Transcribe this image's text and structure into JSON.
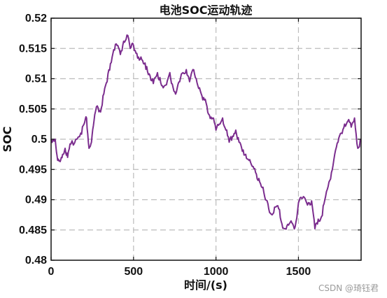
{
  "chart_data": {
    "type": "line",
    "title": "电池SOC运动轨迹",
    "xlabel": "时间/(s)",
    "ylabel": "SOC",
    "xlim": [
      0,
      1880
    ],
    "ylim": [
      0.48,
      0.52
    ],
    "xticks": [
      0,
      500,
      1000,
      1500
    ],
    "yticks": [
      0.48,
      0.485,
      0.49,
      0.495,
      0.5,
      0.505,
      0.51,
      0.515,
      0.52
    ],
    "ytick_labels": [
      "0.48",
      "0.485",
      "0.49",
      "0.495",
      "0.5",
      "0.505",
      "0.51",
      "0.515",
      "0.52"
    ],
    "grid": true,
    "line_color": "#7b2d8e",
    "series": [
      {
        "x": [
          0,
          25,
          40,
          55,
          70,
          85,
          100,
          120,
          150,
          180,
          200,
          215,
          230,
          245,
          260,
          280,
          300,
          320,
          340,
          360,
          380,
          400,
          420,
          440,
          460,
          480,
          500,
          520,
          540,
          560,
          580,
          600,
          620,
          640,
          660,
          680,
          700,
          720,
          740,
          760,
          780,
          800,
          820,
          840,
          860,
          880,
          900,
          920,
          940,
          960,
          980,
          1000,
          1020,
          1040,
          1060,
          1080,
          1100,
          1120,
          1140,
          1160,
          1180,
          1200,
          1220,
          1240,
          1260,
          1280,
          1300,
          1320,
          1340,
          1360,
          1380,
          1400,
          1420,
          1440,
          1460,
          1480,
          1500,
          1520,
          1540,
          1560,
          1580,
          1600,
          1620,
          1640,
          1660,
          1680,
          1700,
          1720,
          1740,
          1760,
          1780,
          1800,
          1820,
          1840,
          1860,
          1880
        ],
        "y": [
          0.5,
          0.5,
          0.4965,
          0.4963,
          0.4975,
          0.4985,
          0.497,
          0.4992,
          0.5,
          0.501,
          0.5025,
          0.5035,
          0.4985,
          0.4995,
          0.503,
          0.5055,
          0.5045,
          0.5075,
          0.5095,
          0.5125,
          0.5148,
          0.5155,
          0.514,
          0.5162,
          0.5172,
          0.515,
          0.5155,
          0.5142,
          0.5132,
          0.5125,
          0.512,
          0.5105,
          0.5092,
          0.5105,
          0.5102,
          0.5085,
          0.509,
          0.511,
          0.5085,
          0.5078,
          0.5095,
          0.511,
          0.5115,
          0.5095,
          0.5115,
          0.51,
          0.5085,
          0.5065,
          0.506,
          0.504,
          0.5035,
          0.5015,
          0.5025,
          0.5035,
          0.5015,
          0.4995,
          0.5005,
          0.5015,
          0.4995,
          0.498,
          0.4975,
          0.4965,
          0.4955,
          0.4945,
          0.4935,
          0.492,
          0.49,
          0.4885,
          0.4875,
          0.4888,
          0.4885,
          0.486,
          0.4852,
          0.4858,
          0.4862,
          0.4855,
          0.4895,
          0.4902,
          0.4902,
          0.4895,
          0.4898,
          0.4852,
          0.4868,
          0.4872,
          0.49,
          0.4922,
          0.4945,
          0.4975,
          0.4995,
          0.501,
          0.5025,
          0.503,
          0.502,
          0.5035,
          0.4985,
          0.5
        ]
      }
    ]
  },
  "watermark": "CSDN @琦钰君"
}
